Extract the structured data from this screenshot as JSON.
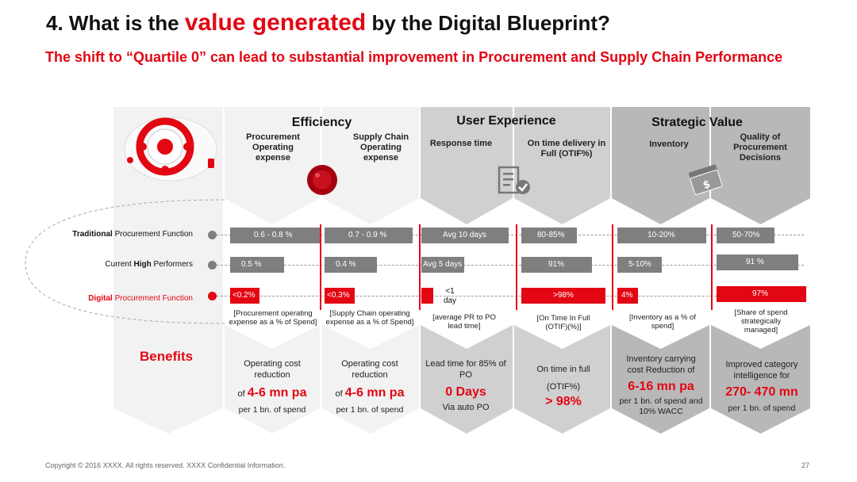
{
  "title": {
    "prefix": "4. What is the ",
    "highlight": "value generated",
    "suffix": " by the Digital Blueprint?"
  },
  "subtitle": "The shift to “Quartile 0” can lead to substantial improvement in Procurement and Supply Chain Performance",
  "groups": {
    "efficiency": "Efficiency",
    "user_experience": "User Experience",
    "strategic_value": "Strategic Value"
  },
  "columns": [
    {
      "header": "Procurement Operating expense",
      "note": "[Procurement operating expense as a % of Spend]",
      "traditional": "0.6 - 0.8 %",
      "current": "0.5 %",
      "digital": "<0.2%"
    },
    {
      "header": "Supply Chain Operating expense",
      "note": "[Supply Chain operating expense as a % of Spend]",
      "traditional": "0.7 - 0.9 %",
      "current": "0.4 %",
      "digital": "<0.3%"
    },
    {
      "header": "Response time",
      "note": "[average PR to PO lead time]",
      "traditional": "Avg 10 days",
      "current": "Avg 5 days",
      "digital": "<1 day"
    },
    {
      "header": "On time delivery in Full (OTIF%)",
      "note": "[On Time In Full (OTIF)(%)]",
      "traditional": "80-85%",
      "current": "91%",
      "digital": ">98%"
    },
    {
      "header": "Inventory",
      "note": "[Inventory as a % of spend]",
      "traditional": "10-20%",
      "current": "5-10%",
      "digital": "4%"
    },
    {
      "header": "Quality of Procurement Decisions",
      "note": "[Share of spend strategically managed]",
      "traditional": "50-70%",
      "current": "91 %",
      "digital": "97%"
    }
  ],
  "rows": {
    "traditional": {
      "bold": "Traditional",
      "rest": " Procurement Function"
    },
    "current": {
      "plain": "Current ",
      "bold": "High",
      "rest": " Performers"
    },
    "digital": {
      "bold": "Digital",
      "rest": " Procurement Function"
    }
  },
  "benefits_label": "Benefits",
  "benefits": [
    {
      "line1": "Operating cost reduction",
      "prefix": "of",
      "value": "4-6 mn pa",
      "line2": "per 1 bn. of spend"
    },
    {
      "line1": "Operating cost reduction",
      "prefix": "of",
      "value": "4-6 mn pa",
      "line2": "per 1 bn. of spend"
    },
    {
      "line1": "Lead time for 85% of PO",
      "value": "0 Days",
      "line2": "Via auto PO"
    },
    {
      "line1": "On time in full",
      "line1b": "(OTIF%)",
      "value": "> 98%"
    },
    {
      "line1": "Inventory carrying cost Reduction of",
      "value": "6-16 mn pa",
      "line2": "per 1 bn. of spend and 10% WACC"
    },
    {
      "line1": "Improved category intelligence for",
      "value": "270- 470 mn",
      "line2": "per 1 bn. of spend"
    }
  ],
  "footer": {
    "copyright": "Copyright © 2016 XXXX. All rights reserved. XXXX Confidential Information.",
    "page": "27"
  },
  "colors": {
    "accent": "#e30613",
    "bar_grey": "#7f7f7f",
    "eff_bg": "#f2f2f2",
    "ux_bg": "#d0d0d0",
    "sv_bg": "#b8b8b8"
  }
}
